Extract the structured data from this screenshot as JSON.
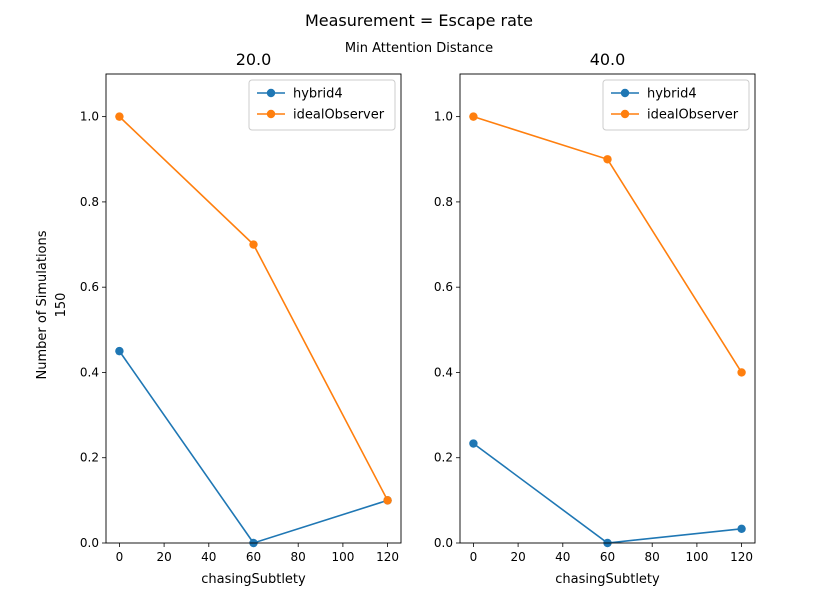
{
  "figure": {
    "title": "Measurement = Escape rate",
    "subtitle": "Min Attention Distance",
    "row_label_line1": "Number of Simulations",
    "row_label_line2": "150"
  },
  "colors": {
    "hybrid4": "#1f77b4",
    "idealObserver": "#ff7f0e"
  },
  "chart_data": [
    {
      "type": "line",
      "title": "20.0",
      "xlabel": "chasingSubtlety",
      "ylabel": "",
      "xlim": [
        -6,
        126
      ],
      "ylim": [
        0,
        1.1
      ],
      "xticks": [
        0,
        20,
        40,
        60,
        80,
        100,
        120
      ],
      "yticks": [
        0.0,
        0.2,
        0.4,
        0.6,
        0.8,
        1.0
      ],
      "ytick_labels": [
        "0.0",
        "0.2",
        "0.4",
        "0.6",
        "0.8",
        "1.0"
      ],
      "x": [
        0,
        60,
        120
      ],
      "legend": "upper right",
      "grid": false,
      "series": [
        {
          "name": "hybrid4",
          "values": [
            0.45,
            0.0,
            0.1
          ]
        },
        {
          "name": "idealObserver",
          "values": [
            1.0,
            0.7,
            0.1
          ]
        }
      ]
    },
    {
      "type": "line",
      "title": "40.0",
      "xlabel": "chasingSubtlety",
      "ylabel": "",
      "xlim": [
        -6,
        126
      ],
      "ylim": [
        0,
        1.1
      ],
      "xticks": [
        0,
        20,
        40,
        60,
        80,
        100,
        120
      ],
      "yticks": [
        0.0,
        0.2,
        0.4,
        0.6,
        0.8,
        1.0
      ],
      "ytick_labels": [
        "0.0",
        "0.2",
        "0.4",
        "0.6",
        "0.8",
        "1.0"
      ],
      "x": [
        0,
        60,
        120
      ],
      "legend": "upper right",
      "grid": false,
      "series": [
        {
          "name": "hybrid4",
          "values": [
            0.2333,
            0.0,
            0.0333
          ]
        },
        {
          "name": "idealObserver",
          "values": [
            1.0,
            0.9,
            0.4
          ]
        }
      ]
    }
  ]
}
